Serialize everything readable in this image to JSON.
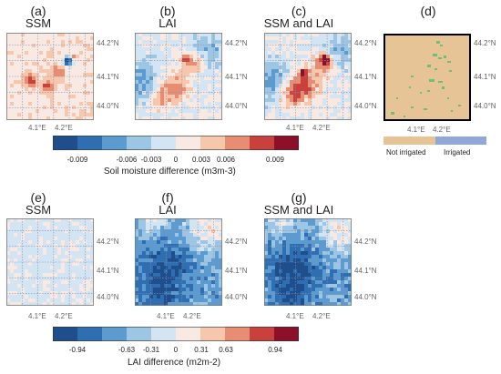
{
  "top_row": {
    "panels": [
      {
        "letter": "(a)",
        "title": "SSM"
      },
      {
        "letter": "(b)",
        "title": "LAI"
      },
      {
        "letter": "(c)",
        "title": "SSM and LAI"
      },
      {
        "letter": "(d)",
        "title": ""
      }
    ],
    "colorbar": {
      "ticks": [
        "-0.009",
        "-0.006",
        "-0.003",
        "0",
        "0.003",
        "0.006",
        "0.009"
      ],
      "label": "Soil moisture difference (m3m-3)"
    }
  },
  "bottom_row": {
    "panels": [
      {
        "letter": "(e)",
        "title": "SSM"
      },
      {
        "letter": "(f)",
        "title": "LAI"
      },
      {
        "letter": "(g)",
        "title": "SSM and LAI"
      }
    ],
    "colorbar": {
      "ticks": [
        "-0.94",
        "-0.63",
        "-0.31",
        "0",
        "0.31",
        "0.63",
        "0.94"
      ],
      "label": "LAI difference (m2m-2)"
    }
  },
  "axes": {
    "lat_labels": [
      "44.2°N",
      "44.1°N",
      "44.0°N"
    ],
    "lon_labels": [
      "4.1°E",
      "4.2°E"
    ]
  },
  "legend_d": {
    "not_irrigated": "Not irrigated",
    "irrigated": "Irrigated"
  },
  "colors": {
    "diverging": [
      "#1f4e8c",
      "#2f6fb1",
      "#5b9bd0",
      "#9cc6e4",
      "#d3e5f2",
      "#f8e9e2",
      "#f6c6ad",
      "#e68d72",
      "#c9413c",
      "#8c1027"
    ],
    "not_irrigated": "#e6c495",
    "irrigated": "#8fa8d6",
    "irrigated_patch": "#6fbf7a"
  }
}
